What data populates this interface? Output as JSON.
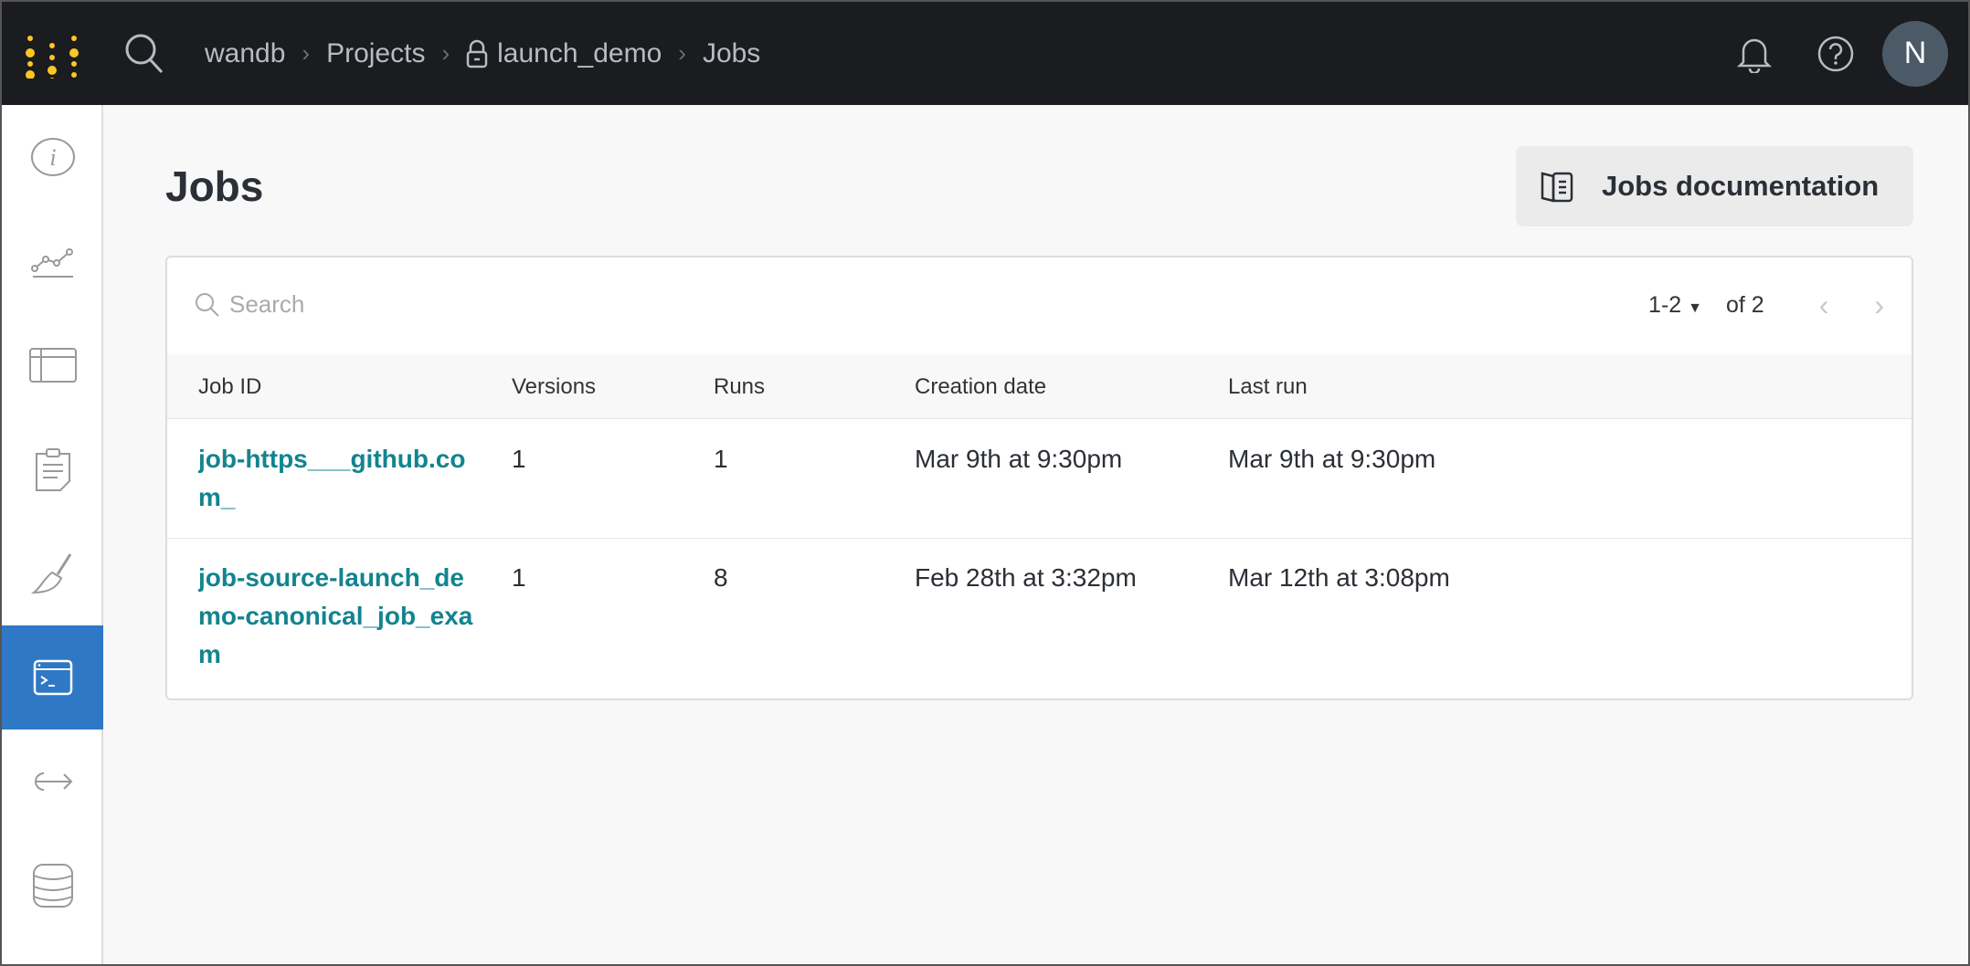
{
  "topbar": {
    "breadcrumb": [
      "wandb",
      "Projects",
      "launch_demo",
      "Jobs"
    ],
    "avatar_initial": "N",
    "accent": "#fcc623"
  },
  "sidebar": {
    "items": [
      {
        "icon": "info-icon"
      },
      {
        "icon": "chart-line-icon"
      },
      {
        "icon": "table-icon"
      },
      {
        "icon": "clipboard-icon"
      },
      {
        "icon": "broom-icon"
      },
      {
        "icon": "terminal-icon",
        "active": true
      },
      {
        "icon": "arrow-right-icon"
      },
      {
        "icon": "database-icon"
      }
    ],
    "active_color": "#2f78c5"
  },
  "page": {
    "title": "Jobs",
    "doc_button": "Jobs documentation"
  },
  "table": {
    "search_placeholder": "Search",
    "pager": {
      "range": "1-2",
      "total": "of 2"
    },
    "columns": [
      "Job ID",
      "Versions",
      "Runs",
      "Creation date",
      "Last run"
    ],
    "rows": [
      {
        "job_id": "job-https___github.com_",
        "versions": "1",
        "runs": "1",
        "created": "Mar 9th at 9:30pm",
        "last_run": "Mar 9th at 9:30pm"
      },
      {
        "job_id": "job-source-launch_demo-canonical_job_exam",
        "versions": "1",
        "runs": "8",
        "created": "Feb 28th at 3:32pm",
        "last_run": "Mar 12th at 3:08pm"
      }
    ],
    "link_color": "#12848f"
  }
}
